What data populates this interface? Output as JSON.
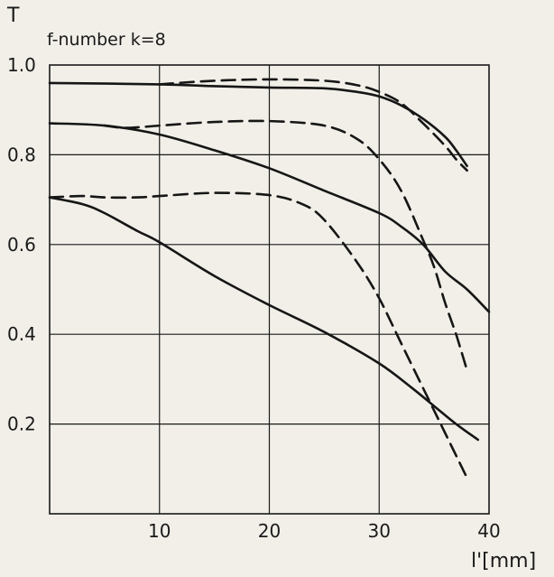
{
  "chart_data": {
    "type": "line",
    "ylabel": "T",
    "xlabel": "l'[mm]",
    "annotation": "f-number k=8",
    "xlim": [
      0,
      40
    ],
    "ylim": [
      0.0,
      1.0
    ],
    "x_ticks": [
      "10",
      "20",
      "30",
      "40"
    ],
    "y_ticks": [
      "0.2",
      "0.4",
      "0.6",
      "0.8",
      "1.0"
    ],
    "grid": true,
    "series": [
      {
        "style": "solid",
        "points": [
          [
            0,
            0.96
          ],
          [
            10,
            0.957
          ],
          [
            15,
            0.953
          ],
          [
            20,
            0.95
          ],
          [
            25,
            0.948
          ],
          [
            28,
            0.94
          ],
          [
            30,
            0.93
          ],
          [
            32,
            0.91
          ],
          [
            34,
            0.88
          ],
          [
            36,
            0.84
          ],
          [
            37,
            0.81
          ],
          [
            38,
            0.775
          ]
        ]
      },
      {
        "style": "dashed",
        "points": [
          [
            10,
            0.957
          ],
          [
            15,
            0.965
          ],
          [
            20,
            0.968
          ],
          [
            25,
            0.965
          ],
          [
            28,
            0.955
          ],
          [
            30,
            0.94
          ],
          [
            32,
            0.915
          ],
          [
            34,
            0.87
          ],
          [
            36,
            0.82
          ],
          [
            37,
            0.79
          ],
          [
            38,
            0.765
          ]
        ]
      },
      {
        "style": "solid",
        "points": [
          [
            0,
            0.87
          ],
          [
            5,
            0.865
          ],
          [
            10,
            0.845
          ],
          [
            15,
            0.81
          ],
          [
            20,
            0.77
          ],
          [
            25,
            0.72
          ],
          [
            30,
            0.67
          ],
          [
            32,
            0.64
          ],
          [
            34,
            0.6
          ],
          [
            36,
            0.54
          ],
          [
            38,
            0.5
          ],
          [
            40,
            0.45
          ]
        ]
      },
      {
        "style": "dashed",
        "points": [
          [
            5,
            0.865
          ],
          [
            7,
            0.86
          ],
          [
            10,
            0.865
          ],
          [
            15,
            0.873
          ],
          [
            20,
            0.875
          ],
          [
            25,
            0.865
          ],
          [
            28,
            0.835
          ],
          [
            30,
            0.79
          ],
          [
            32,
            0.72
          ],
          [
            34,
            0.61
          ],
          [
            35,
            0.55
          ],
          [
            36,
            0.47
          ],
          [
            37,
            0.4
          ],
          [
            37.5,
            0.36
          ],
          [
            38,
            0.32
          ]
        ]
      },
      {
        "style": "solid",
        "points": [
          [
            0,
            0.705
          ],
          [
            3,
            0.69
          ],
          [
            5,
            0.67
          ],
          [
            8,
            0.63
          ],
          [
            10,
            0.605
          ],
          [
            15,
            0.53
          ],
          [
            20,
            0.465
          ],
          [
            25,
            0.405
          ],
          [
            30,
            0.335
          ],
          [
            33,
            0.28
          ],
          [
            35,
            0.24
          ],
          [
            37,
            0.2
          ],
          [
            39,
            0.165
          ]
        ]
      },
      {
        "style": "dashed",
        "points": [
          [
            0,
            0.705
          ],
          [
            3,
            0.708
          ],
          [
            5,
            0.705
          ],
          [
            8,
            0.705
          ],
          [
            10,
            0.708
          ],
          [
            15,
            0.715
          ],
          [
            20,
            0.71
          ],
          [
            23,
            0.69
          ],
          [
            25,
            0.655
          ],
          [
            28,
            0.56
          ],
          [
            30,
            0.48
          ],
          [
            32,
            0.38
          ],
          [
            34,
            0.28
          ],
          [
            36,
            0.18
          ],
          [
            38,
            0.08
          ]
        ]
      }
    ]
  }
}
